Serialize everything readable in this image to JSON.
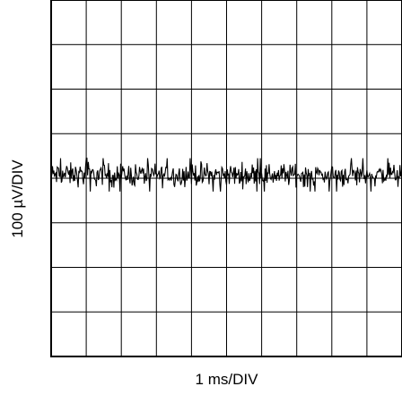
{
  "chart_data": {
    "type": "line",
    "title": "",
    "xlabel": "1 ms/DIV",
    "ylabel": "100 µV/DIV",
    "x_divisions": 10,
    "y_divisions": 8,
    "xlim": [
      0,
      10
    ],
    "ylim": [
      -4,
      4
    ],
    "x_units": "ms",
    "y_units": "100 µV",
    "grid": true,
    "series": [
      {
        "description": "noise trace",
        "x_range_ms": [
          0,
          10
        ],
        "y_center_div": 0.08,
        "y_peak_positive_div": 0.45,
        "y_peak_negative_div": -0.3,
        "line_color": "#000000"
      }
    ]
  }
}
